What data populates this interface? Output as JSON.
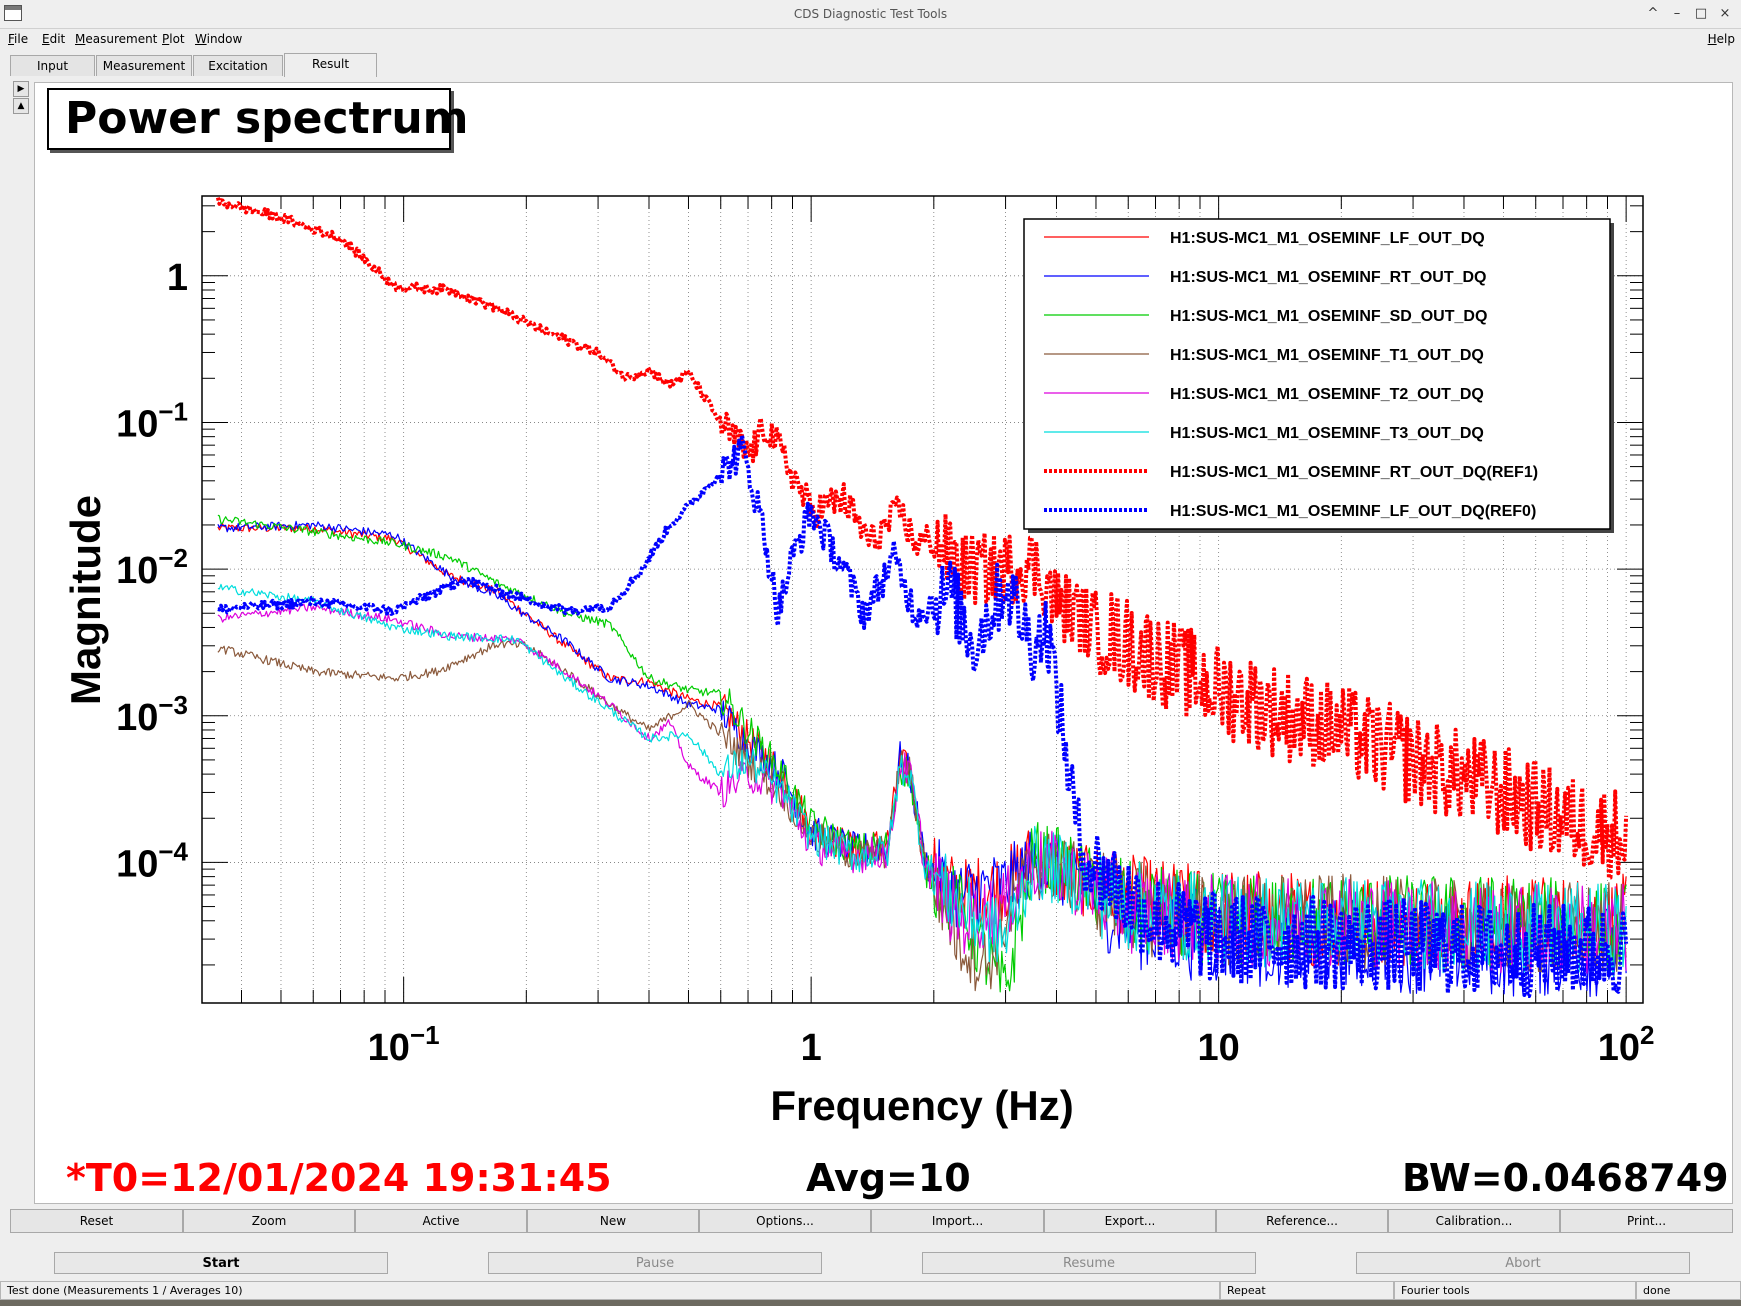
{
  "window": {
    "title": "CDS Diagnostic Test Tools",
    "controls": [
      "^",
      "–",
      "□",
      "×"
    ]
  },
  "menu": {
    "items": [
      "File",
      "Edit",
      "Measurement",
      "Plot",
      "Window"
    ],
    "help": "Help"
  },
  "tabs": [
    "Input",
    "Measurement",
    "Excitation",
    "Result"
  ],
  "active_tab": "Result",
  "plot": {
    "title": "Power spectrum",
    "t0_label": "*T0=12/01/2024 19:31:45",
    "avg_label": "Avg=10",
    "bw_label": "BW=0.0468749",
    "t0_color": "#ff0000"
  },
  "chart_data": {
    "type": "line",
    "title": "Power spectrum",
    "xlabel": "Frequency (Hz)",
    "ylabel": "Magnitude",
    "xscale": "log",
    "yscale": "log",
    "xlim": [
      0.032,
      110
    ],
    "ylim": [
      1.1e-05,
      3.5
    ],
    "grid": true,
    "legend_position": "top-right",
    "x_ticks": [
      {
        "value": 0.1,
        "base": "10",
        "exp": "−1"
      },
      {
        "value": 1,
        "base": "1",
        "exp": ""
      },
      {
        "value": 10,
        "base": "10",
        "exp": ""
      },
      {
        "value": 100,
        "base": "10",
        "exp": "2"
      }
    ],
    "y_ticks": [
      {
        "value": 1,
        "base": "1",
        "exp": ""
      },
      {
        "value": 0.1,
        "base": "10",
        "exp": "−1"
      },
      {
        "value": 0.01,
        "base": "10",
        "exp": "−2"
      },
      {
        "value": 0.001,
        "base": "10",
        "exp": "−3"
      },
      {
        "value": 0.0001,
        "base": "10",
        "exp": "−4"
      }
    ],
    "series": [
      {
        "name": "H1:SUS-MC1_M1_OSEMINF_LF_OUT_DQ",
        "color": "#ff0000",
        "style": "solid",
        "points": [
          [
            0.035,
            0.019
          ],
          [
            0.06,
            0.019
          ],
          [
            0.095,
            0.016
          ],
          [
            0.13,
            0.009
          ],
          [
            0.17,
            0.007
          ],
          [
            0.25,
            0.003
          ],
          [
            0.32,
            0.0018
          ],
          [
            0.4,
            0.0017
          ],
          [
            0.5,
            0.0013
          ],
          [
            0.6,
            0.00115
          ],
          [
            0.7,
            0.0007
          ],
          [
            0.85,
            0.0004
          ],
          [
            1.0,
            0.00017
          ],
          [
            1.3,
            0.00012
          ],
          [
            1.55,
            0.00014
          ],
          [
            1.65,
            0.0005
          ],
          [
            1.75,
            0.0004
          ],
          [
            1.9,
            0.0001
          ],
          [
            2.3,
            6e-05
          ],
          [
            3.0,
            7e-05
          ],
          [
            3.5,
            0.00011
          ],
          [
            4.0,
            9e-05
          ],
          [
            6,
            5.5e-05
          ],
          [
            10,
            4.5e-05
          ],
          [
            20,
            4e-05
          ],
          [
            50,
            4e-05
          ],
          [
            100,
            4e-05
          ]
        ]
      },
      {
        "name": "H1:SUS-MC1_M1_OSEMINF_RT_OUT_DQ",
        "color": "#0000ff",
        "style": "solid",
        "points": [
          [
            0.035,
            0.019
          ],
          [
            0.06,
            0.02
          ],
          [
            0.095,
            0.017
          ],
          [
            0.13,
            0.009
          ],
          [
            0.17,
            0.0065
          ],
          [
            0.25,
            0.0032
          ],
          [
            0.32,
            0.0018
          ],
          [
            0.4,
            0.0016
          ],
          [
            0.5,
            0.0012
          ],
          [
            0.6,
            0.0011
          ],
          [
            0.7,
            0.00065
          ],
          [
            0.85,
            0.0004
          ],
          [
            1.0,
            0.00016
          ],
          [
            1.3,
            0.00012
          ],
          [
            1.55,
            0.00013
          ],
          [
            1.65,
            0.00052
          ],
          [
            1.75,
            0.0004
          ],
          [
            1.9,
            0.0001
          ],
          [
            2.3,
            6e-05
          ],
          [
            3.0,
            7e-05
          ],
          [
            3.5,
            0.0001
          ],
          [
            4.0,
            9e-05
          ],
          [
            6,
            4e-05
          ],
          [
            10,
            3e-05
          ],
          [
            20,
            2.8e-05
          ],
          [
            50,
            2.5e-05
          ],
          [
            100,
            2.5e-05
          ]
        ]
      },
      {
        "name": "H1:SUS-MC1_M1_OSEMINF_SD_OUT_DQ",
        "color": "#00cc00",
        "style": "solid",
        "points": [
          [
            0.035,
            0.022
          ],
          [
            0.06,
            0.018
          ],
          [
            0.095,
            0.015
          ],
          [
            0.13,
            0.012
          ],
          [
            0.17,
            0.008
          ],
          [
            0.25,
            0.005
          ],
          [
            0.32,
            0.0042
          ],
          [
            0.4,
            0.0018
          ],
          [
            0.5,
            0.0015
          ],
          [
            0.6,
            0.0014
          ],
          [
            0.7,
            0.0008
          ],
          [
            0.85,
            0.0004
          ],
          [
            1.0,
            0.00018
          ],
          [
            1.3,
            0.00012
          ],
          [
            1.55,
            0.00013
          ],
          [
            1.65,
            0.00045
          ],
          [
            1.75,
            0.0004
          ],
          [
            1.9,
            9e-05
          ],
          [
            2.3,
            5e-05
          ],
          [
            3.0,
            1.3e-05
          ],
          [
            3.5,
            0.00011
          ],
          [
            4.0,
            0.0001
          ],
          [
            6,
            5e-05
          ],
          [
            10,
            4e-05
          ],
          [
            20,
            4e-05
          ],
          [
            50,
            4e-05
          ],
          [
            100,
            3.5e-05
          ]
        ]
      },
      {
        "name": "H1:SUS-MC1_M1_OSEMINF_T1_OUT_DQ",
        "color": "#8b5a3c",
        "style": "solid",
        "points": [
          [
            0.035,
            0.0029
          ],
          [
            0.06,
            0.002
          ],
          [
            0.095,
            0.0018
          ],
          [
            0.12,
            0.002
          ],
          [
            0.17,
            0.0031
          ],
          [
            0.2,
            0.003
          ],
          [
            0.25,
            0.002
          ],
          [
            0.32,
            0.0012
          ],
          [
            0.4,
            0.0008
          ],
          [
            0.5,
            0.0012
          ],
          [
            0.6,
            0.00075
          ],
          [
            0.7,
            0.0005
          ],
          [
            0.85,
            0.0003
          ],
          [
            1.0,
            0.00015
          ],
          [
            1.3,
            0.00011
          ],
          [
            1.55,
            0.00012
          ],
          [
            1.65,
            0.00048
          ],
          [
            1.75,
            0.0004
          ],
          [
            1.9,
            0.0001
          ],
          [
            2.3,
            3e-05
          ],
          [
            2.7,
            2e-05
          ],
          [
            3.0,
            4e-05
          ],
          [
            3.5,
            0.0001
          ],
          [
            4.0,
            9e-05
          ],
          [
            6,
            5e-05
          ],
          [
            10,
            4e-05
          ],
          [
            20,
            4e-05
          ],
          [
            50,
            3.5e-05
          ],
          [
            100,
            3.5e-05
          ]
        ]
      },
      {
        "name": "H1:SUS-MC1_M1_OSEMINF_T2_OUT_DQ",
        "color": "#dd00dd",
        "style": "solid",
        "points": [
          [
            0.035,
            0.0046
          ],
          [
            0.06,
            0.0055
          ],
          [
            0.095,
            0.0045
          ],
          [
            0.13,
            0.0035
          ],
          [
            0.19,
            0.0033
          ],
          [
            0.25,
            0.002
          ],
          [
            0.32,
            0.0012
          ],
          [
            0.4,
            0.0007
          ],
          [
            0.45,
            0.0009
          ],
          [
            0.5,
            0.00045
          ],
          [
            0.6,
            0.0003
          ],
          [
            0.7,
            0.0004
          ],
          [
            0.85,
            0.0003
          ],
          [
            1.0,
            0.00013
          ],
          [
            1.3,
            0.00011
          ],
          [
            1.55,
            0.00012
          ],
          [
            1.65,
            0.00046
          ],
          [
            1.75,
            0.0004
          ],
          [
            1.9,
            0.0001
          ],
          [
            2.3,
            4e-05
          ],
          [
            3.0,
            5e-05
          ],
          [
            3.5,
            0.0001
          ],
          [
            4.0,
            9e-05
          ],
          [
            6,
            5e-05
          ],
          [
            10,
            4e-05
          ],
          [
            20,
            4e-05
          ],
          [
            50,
            3.5e-05
          ],
          [
            100,
            3.5e-05
          ]
        ]
      },
      {
        "name": "H1:SUS-MC1_M1_OSEMINF_T3_OUT_DQ",
        "color": "#00dddd",
        "style": "solid",
        "points": [
          [
            0.035,
            0.0075
          ],
          [
            0.06,
            0.006
          ],
          [
            0.095,
            0.004
          ],
          [
            0.13,
            0.0035
          ],
          [
            0.19,
            0.0033
          ],
          [
            0.25,
            0.0018
          ],
          [
            0.32,
            0.0011
          ],
          [
            0.4,
            0.0007
          ],
          [
            0.5,
            0.00075
          ],
          [
            0.6,
            0.0004
          ],
          [
            0.7,
            0.0005
          ],
          [
            0.85,
            0.0003
          ],
          [
            1.0,
            0.00015
          ],
          [
            1.3,
            0.00011
          ],
          [
            1.55,
            0.00012
          ],
          [
            1.65,
            0.00045
          ],
          [
            1.75,
            0.0004
          ],
          [
            1.9,
            0.0001
          ],
          [
            2.3,
            5e-05
          ],
          [
            3.0,
            3e-05
          ],
          [
            3.5,
            0.0001
          ],
          [
            4.0,
            9e-05
          ],
          [
            6,
            5e-05
          ],
          [
            10,
            4e-05
          ],
          [
            20,
            4e-05
          ],
          [
            50,
            3.5e-05
          ],
          [
            100,
            3.5e-05
          ]
        ]
      },
      {
        "name": "H1:SUS-MC1_M1_OSEMINF_RT_OUT_DQ(REF1)",
        "color": "#ff0000",
        "style": "dotted",
        "points": [
          [
            0.035,
            3.2
          ],
          [
            0.05,
            2.5
          ],
          [
            0.07,
            1.8
          ],
          [
            0.095,
            0.85
          ],
          [
            0.13,
            0.8
          ],
          [
            0.17,
            0.6
          ],
          [
            0.22,
            0.42
          ],
          [
            0.3,
            0.3
          ],
          [
            0.35,
            0.2
          ],
          [
            0.4,
            0.23
          ],
          [
            0.45,
            0.18
          ],
          [
            0.5,
            0.22
          ],
          [
            0.6,
            0.1
          ],
          [
            0.7,
            0.06
          ],
          [
            0.78,
            0.095
          ],
          [
            0.85,
            0.06
          ],
          [
            1.0,
            0.025
          ],
          [
            1.2,
            0.03
          ],
          [
            1.4,
            0.015
          ],
          [
            1.65,
            0.025
          ],
          [
            1.8,
            0.015
          ],
          [
            2.0,
            0.016
          ],
          [
            2.4,
            0.01
          ],
          [
            3.0,
            0.01
          ],
          [
            3.5,
            0.011
          ],
          [
            4.0,
            0.006
          ],
          [
            5,
            0.004
          ],
          [
            7,
            0.0025
          ],
          [
            10,
            0.0015
          ],
          [
            15,
            0.001
          ],
          [
            20,
            0.0008
          ],
          [
            30,
            0.0005
          ],
          [
            50,
            0.0003
          ],
          [
            70,
            0.0002
          ],
          [
            100,
            0.00015
          ]
        ]
      },
      {
        "name": "H1:SUS-MC1_M1_OSEMINF_LF_OUT_DQ(REF0)",
        "color": "#0000ff",
        "style": "dotted",
        "points": [
          [
            0.035,
            0.0053
          ],
          [
            0.06,
            0.006
          ],
          [
            0.095,
            0.0052
          ],
          [
            0.14,
            0.0085
          ],
          [
            0.19,
            0.0065
          ],
          [
            0.25,
            0.0052
          ],
          [
            0.32,
            0.0056
          ],
          [
            0.38,
            0.0095
          ],
          [
            0.45,
            0.02
          ],
          [
            0.55,
            0.035
          ],
          [
            0.68,
            0.065
          ],
          [
            0.76,
            0.02
          ],
          [
            0.83,
            0.005
          ],
          [
            0.9,
            0.012
          ],
          [
            1.0,
            0.025
          ],
          [
            1.2,
            0.01
          ],
          [
            1.35,
            0.005
          ],
          [
            1.6,
            0.012
          ],
          [
            1.8,
            0.005
          ],
          [
            2.2,
            0.007
          ],
          [
            2.5,
            0.003
          ],
          [
            3.0,
            0.008
          ],
          [
            3.5,
            0.003
          ],
          [
            3.8,
            0.004
          ],
          [
            4.0,
            0.0015
          ],
          [
            4.3,
            0.0004
          ],
          [
            4.6,
            0.00012
          ],
          [
            5,
            9e-05
          ],
          [
            7,
            4e-05
          ],
          [
            10,
            3e-05
          ],
          [
            20,
            2.8e-05
          ],
          [
            50,
            2.5e-05
          ],
          [
            100,
            2.5e-05
          ]
        ]
      }
    ]
  },
  "buttons_row1": [
    "Reset",
    "Zoom",
    "Active",
    "New",
    "Options...",
    "Import...",
    "Export...",
    "Reference...",
    "Calibration...",
    "Print..."
  ],
  "buttons_row2": [
    "Start",
    "Pause",
    "Resume",
    "Abort"
  ],
  "status": {
    "message": "Test done (Measurements 1 / Averages 10)",
    "repeat": "Repeat",
    "tools": "Fourier tools",
    "state": "done"
  }
}
